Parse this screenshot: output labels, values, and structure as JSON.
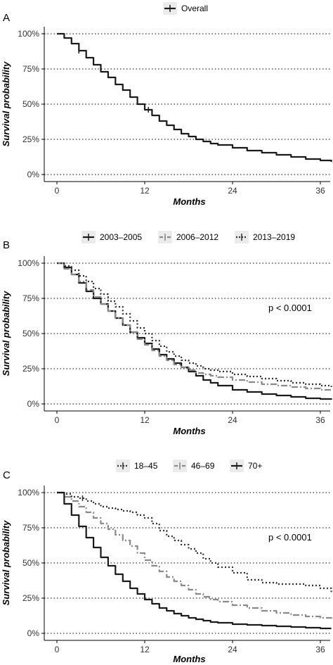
{
  "chart_data": [
    {
      "type": "line",
      "panel_label": "A",
      "xlabel": "Months",
      "ylabel": "Survival probability",
      "xlim": [
        0,
        37.5
      ],
      "ylim": [
        0,
        1
      ],
      "x_ticks": [
        0,
        12,
        24,
        36
      ],
      "x_tick_labels": [
        "0",
        "12",
        "24",
        "36"
      ],
      "y_ticks": [
        0,
        0.25,
        0.5,
        0.75,
        1
      ],
      "y_tick_labels": [
        "0%",
        "25%",
        "50%",
        "75%",
        "100%"
      ],
      "grid": "horizontal dotted",
      "legend_position": "top",
      "annotation": "",
      "series": [
        {
          "name": "Overall",
          "color": "#1a1a1a",
          "dash": "solid",
          "x": [
            0,
            1,
            2,
            3,
            4,
            5,
            6,
            7,
            8,
            9,
            10,
            11,
            12,
            13,
            14,
            15,
            16,
            17,
            18,
            19,
            20,
            21,
            22,
            24,
            26,
            28,
            30,
            32,
            34,
            36,
            37.5
          ],
          "y": [
            1.0,
            0.97,
            0.93,
            0.88,
            0.83,
            0.78,
            0.73,
            0.69,
            0.64,
            0.6,
            0.55,
            0.5,
            0.46,
            0.42,
            0.38,
            0.35,
            0.32,
            0.29,
            0.27,
            0.25,
            0.235,
            0.22,
            0.21,
            0.19,
            0.17,
            0.155,
            0.14,
            0.125,
            0.11,
            0.1,
            0.09
          ],
          "censor_x": [
            3,
            12.5
          ]
        }
      ]
    },
    {
      "type": "line",
      "panel_label": "B",
      "xlabel": "Months",
      "ylabel": "Survival probability",
      "xlim": [
        0,
        37.5
      ],
      "ylim": [
        0,
        1
      ],
      "x_ticks": [
        0,
        12,
        24,
        36
      ],
      "x_tick_labels": [
        "0",
        "12",
        "24",
        "36"
      ],
      "y_ticks": [
        0,
        0.25,
        0.5,
        0.75,
        1
      ],
      "y_tick_labels": [
        "0%",
        "25%",
        "50%",
        "75%",
        "100%"
      ],
      "grid": "horizontal dotted",
      "legend_position": "top",
      "annotation": "p < 0.0001",
      "series": [
        {
          "name": "2003–2005",
          "color": "#1a1a1a",
          "dash": "solid",
          "x": [
            0,
            1,
            2,
            3,
            4,
            5,
            6,
            7,
            8,
            9,
            10,
            11,
            12,
            13,
            14,
            15,
            16,
            17,
            18,
            19,
            20,
            21,
            22,
            24,
            26,
            28,
            30,
            32,
            34,
            36,
            37.5
          ],
          "y": [
            1.0,
            0.97,
            0.92,
            0.86,
            0.8,
            0.75,
            0.71,
            0.66,
            0.61,
            0.56,
            0.51,
            0.47,
            0.43,
            0.39,
            0.35,
            0.32,
            0.29,
            0.26,
            0.23,
            0.2,
            0.17,
            0.15,
            0.13,
            0.1,
            0.085,
            0.07,
            0.06,
            0.05,
            0.04,
            0.035,
            0.03
          ]
        },
        {
          "name": "2006–2012",
          "color": "#8a8a8a",
          "dash": "dashdot",
          "x": [
            0,
            1,
            2,
            3,
            4,
            5,
            6,
            7,
            8,
            9,
            10,
            11,
            12,
            13,
            14,
            15,
            16,
            17,
            18,
            19,
            20,
            21,
            22,
            24,
            26,
            28,
            30,
            32,
            34,
            36,
            37.5
          ],
          "y": [
            1.0,
            0.96,
            0.92,
            0.87,
            0.81,
            0.76,
            0.71,
            0.66,
            0.61,
            0.56,
            0.51,
            0.46,
            0.42,
            0.38,
            0.34,
            0.31,
            0.28,
            0.26,
            0.24,
            0.22,
            0.21,
            0.2,
            0.19,
            0.17,
            0.155,
            0.14,
            0.13,
            0.12,
            0.11,
            0.1,
            0.09
          ]
        },
        {
          "name": "2013–2019",
          "color": "#333333",
          "dash": "dotted",
          "x": [
            0,
            1,
            2,
            3,
            4,
            5,
            6,
            7,
            8,
            9,
            10,
            11,
            12,
            13,
            14,
            15,
            16,
            17,
            18,
            19,
            20,
            21,
            22,
            24,
            26,
            28,
            30,
            32,
            34,
            36,
            37.5
          ],
          "y": [
            1.0,
            0.98,
            0.95,
            0.91,
            0.87,
            0.82,
            0.78,
            0.73,
            0.69,
            0.64,
            0.59,
            0.54,
            0.5,
            0.45,
            0.41,
            0.37,
            0.34,
            0.31,
            0.29,
            0.27,
            0.25,
            0.24,
            0.23,
            0.21,
            0.195,
            0.18,
            0.165,
            0.15,
            0.14,
            0.13,
            0.12
          ]
        }
      ]
    },
    {
      "type": "line",
      "panel_label": "C",
      "xlabel": "Months",
      "ylabel": "Survival probability",
      "xlim": [
        0,
        37.5
      ],
      "ylim": [
        0,
        1
      ],
      "x_ticks": [
        0,
        12,
        24,
        36
      ],
      "x_tick_labels": [
        "0",
        "12",
        "24",
        "36"
      ],
      "y_ticks": [
        0,
        0.25,
        0.5,
        0.75,
        1
      ],
      "y_tick_labels": [
        "0%",
        "25%",
        "50%",
        "75%",
        "100%"
      ],
      "grid": "horizontal dotted",
      "legend_position": "top",
      "annotation": "p < 0.0001",
      "series": [
        {
          "name": "18–45",
          "color": "#333333",
          "dash": "dotted",
          "x": [
            0,
            1,
            2,
            3,
            4,
            5,
            6,
            7,
            8,
            9,
            10,
            11,
            12,
            13,
            14,
            15,
            16,
            17,
            18,
            19,
            20,
            21,
            22,
            24,
            26,
            28,
            30,
            32,
            34,
            36,
            37.5
          ],
          "y": [
            1.0,
            0.99,
            0.97,
            0.96,
            0.94,
            0.92,
            0.9,
            0.89,
            0.88,
            0.87,
            0.86,
            0.84,
            0.82,
            0.78,
            0.73,
            0.69,
            0.66,
            0.63,
            0.6,
            0.57,
            0.53,
            0.5,
            0.47,
            0.43,
            0.38,
            0.36,
            0.35,
            0.35,
            0.34,
            0.32,
            0.28
          ],
          "censor_x": [
            3.5
          ]
        },
        {
          "name": "46–69",
          "color": "#8a8a8a",
          "dash": "dashdot",
          "x": [
            0,
            1,
            2,
            3,
            4,
            5,
            6,
            7,
            8,
            9,
            10,
            11,
            12,
            13,
            14,
            15,
            16,
            17,
            18,
            19,
            20,
            21,
            22,
            24,
            26,
            28,
            30,
            32,
            34,
            36,
            37.5
          ],
          "y": [
            1.0,
            0.97,
            0.94,
            0.9,
            0.86,
            0.82,
            0.78,
            0.74,
            0.7,
            0.66,
            0.62,
            0.57,
            0.52,
            0.48,
            0.44,
            0.4,
            0.37,
            0.34,
            0.31,
            0.28,
            0.26,
            0.24,
            0.225,
            0.2,
            0.18,
            0.16,
            0.145,
            0.13,
            0.12,
            0.11,
            0.1
          ]
        },
        {
          "name": "70+",
          "color": "#1a1a1a",
          "dash": "solid",
          "x": [
            0,
            1,
            2,
            3,
            4,
            5,
            6,
            7,
            8,
            9,
            10,
            11,
            12,
            13,
            14,
            15,
            16,
            17,
            18,
            19,
            20,
            21,
            22,
            24,
            26,
            28,
            30,
            32,
            34,
            36,
            37.5
          ],
          "y": [
            1.0,
            0.92,
            0.84,
            0.76,
            0.68,
            0.61,
            0.54,
            0.48,
            0.42,
            0.37,
            0.32,
            0.28,
            0.24,
            0.21,
            0.18,
            0.16,
            0.14,
            0.125,
            0.11,
            0.1,
            0.09,
            0.08,
            0.075,
            0.065,
            0.06,
            0.055,
            0.05,
            0.045,
            0.04,
            0.035,
            0.035
          ]
        }
      ]
    }
  ]
}
